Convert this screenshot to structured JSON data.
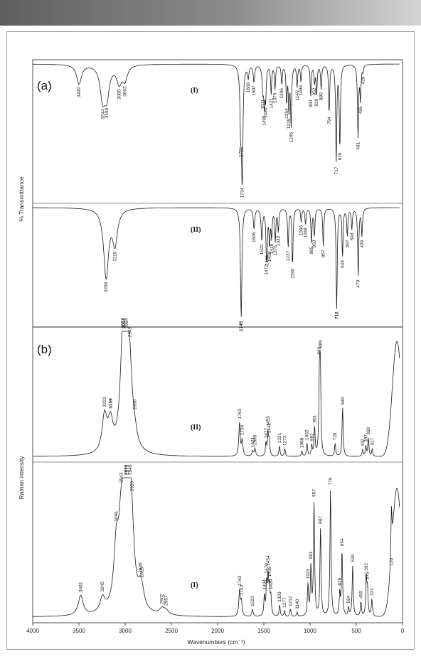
{
  "chart_data": [
    {
      "type": "line",
      "panel": "(a)",
      "ylabel": "% Transmittance",
      "xlabel": "Wavenumbers (cm⁻¹)",
      "xlim": [
        4000,
        0
      ],
      "series": [
        {
          "name": "(I)",
          "peaks": [
            {
              "label": "3499",
              "x": 3499,
              "depth": 0.16
            },
            {
              "label": "3244",
              "x": 3244,
              "depth": 0.26
            },
            {
              "label": "3199",
              "x": 3199,
              "depth": 0.24
            },
            {
              "label": "3065",
              "x": 3065,
              "depth": 0.14
            },
            {
              "label": "3003",
              "x": 3003,
              "depth": 0.12
            },
            {
              "label": "1751",
              "x": 1751,
              "depth": 0.45
            },
            {
              "label": "1734",
              "x": 1734,
              "depth": 0.95
            },
            {
              "label": "1669",
              "x": 1669,
              "depth": 0.1
            },
            {
              "label": "1607",
              "x": 1607,
              "depth": 0.14
            },
            {
              "label": "1511",
              "x": 1511,
              "depth": 0.2
            },
            {
              "label": "1495",
              "x": 1495,
              "depth": 0.3
            },
            {
              "label": "1480",
              "x": 1480,
              "depth": 0.26
            },
            {
              "label": "1421",
              "x": 1421,
              "depth": 0.24
            },
            {
              "label": "1379",
              "x": 1379,
              "depth": 0.2
            },
            {
              "label": "1306",
              "x": 1306,
              "depth": 0.16
            },
            {
              "label": "1254",
              "x": 1254,
              "depth": 0.3
            },
            {
              "label": "1229",
              "x": 1229,
              "depth": 0.36
            },
            {
              "label": "1205",
              "x": 1205,
              "depth": 0.5
            },
            {
              "label": "1140",
              "x": 1140,
              "depth": 0.18
            },
            {
              "label": "1099",
              "x": 1099,
              "depth": 0.14
            },
            {
              "label": "993",
              "x": 993,
              "depth": 0.26
            },
            {
              "label": "952",
              "x": 952,
              "depth": 0.14
            },
            {
              "label": "929",
              "x": 929,
              "depth": 0.24
            },
            {
              "label": "880",
              "x": 880,
              "depth": 0.2
            },
            {
              "label": "794",
              "x": 794,
              "depth": 0.4
            },
            {
              "label": "717",
              "x": 717,
              "depth": 0.8
            },
            {
              "label": "678",
              "x": 678,
              "depth": 0.68
            },
            {
              "label": "481",
              "x": 481,
              "depth": 0.6
            },
            {
              "label": "455",
              "x": 455,
              "depth": 0.28
            },
            {
              "label": "428",
              "x": 428,
              "depth": 0.05
            }
          ]
        },
        {
          "name": "(II)",
          "peaks": [
            {
              "label": "3206",
              "x": 3206,
              "depth": 0.6
            },
            {
              "label": "3110",
              "x": 3110,
              "depth": 0.3
            },
            {
              "label": "1745",
              "x": 1745,
              "depth": 0.97,
              "bold": true
            },
            {
              "label": "1606",
              "x": 1606,
              "depth": 0.18
            },
            {
              "label": "1522",
              "x": 1522,
              "depth": 0.28
            },
            {
              "label": "1472",
              "x": 1472,
              "depth": 0.36
            },
            {
              "label": "1464",
              "x": 1464,
              "depth": 0.2
            },
            {
              "label": "1438",
              "x": 1438,
              "depth": 0.3
            },
            {
              "label": "1416",
              "x": 1416,
              "depth": 0.24
            },
            {
              "label": "1376",
              "x": 1376,
              "depth": 0.28
            },
            {
              "label": "1343",
              "x": 1343,
              "depth": 0.2
            },
            {
              "label": "1237",
              "x": 1237,
              "depth": 0.34
            },
            {
              "label": "1190",
              "x": 1190,
              "depth": 0.5
            },
            {
              "label": "1096",
              "x": 1096,
              "depth": 0.12
            },
            {
              "label": "1049",
              "x": 1049,
              "depth": 0.14
            },
            {
              "label": "985",
              "x": 985,
              "depth": 0.3
            },
            {
              "label": "953",
              "x": 953,
              "depth": 0.24
            },
            {
              "label": "857",
              "x": 857,
              "depth": 0.34
            },
            {
              "label": "712",
              "x": 712,
              "depth": 0.88,
              "bold": true
            },
            {
              "label": "649",
              "x": 649,
              "depth": 0.42
            },
            {
              "label": "597",
              "x": 597,
              "depth": 0.24
            },
            {
              "label": "548",
              "x": 548,
              "depth": 0.18
            },
            {
              "label": "479",
              "x": 479,
              "depth": 0.6
            },
            {
              "label": "439",
              "x": 439,
              "depth": 0.24
            }
          ]
        }
      ]
    },
    {
      "type": "line",
      "panel": "(b)",
      "ylabel": "Raman intensity",
      "xlabel": "Wavenumbers (cm⁻¹)",
      "xlim": [
        4000,
        0
      ],
      "xticks": [
        4000,
        3500,
        3000,
        2500,
        2000,
        1500,
        1000,
        500,
        0
      ],
      "series": [
        {
          "name": "(II)",
          "peaks": [
            {
              "label": "3223",
              "x": 3223,
              "height": 0.28
            },
            {
              "label": "3159",
              "x": 3159,
              "height": 0.22,
              "bold": true
            },
            {
              "label": "3027",
              "x": 3027,
              "height": 0.4
            },
            {
              "label": "3014",
              "x": 3014,
              "height": 0.52,
              "bold": true
            },
            {
              "label": "2984",
              "x": 2984,
              "height": 0.62
            },
            {
              "label": "2949",
              "x": 2949,
              "height": 0.44
            },
            {
              "label": "2898",
              "x": 2898,
              "height": 0.08
            },
            {
              "label": "1763",
              "x": 1763,
              "height": 0.26
            },
            {
              "label": "1734",
              "x": 1734,
              "height": 0.12
            },
            {
              "label": "1621",
              "x": 1621,
              "height": 0.04
            },
            {
              "label": "1596",
              "x": 1596,
              "height": 0.06
            },
            {
              "label": "1477",
              "x": 1477,
              "height": 0.1
            },
            {
              "label": "1455",
              "x": 1455,
              "height": 0.18
            },
            {
              "label": "1441",
              "x": 1441,
              "height": 0.12
            },
            {
              "label": "1331",
              "x": 1331,
              "height": 0.08
            },
            {
              "label": "1273",
              "x": 1273,
              "height": 0.06
            },
            {
              "label": "1088",
              "x": 1088,
              "height": 0.04
            },
            {
              "label": "1033",
              "x": 1033,
              "height": 0.1
            },
            {
              "label": "982",
              "x": 982,
              "height": 0.08
            },
            {
              "label": "951",
              "x": 951,
              "height": 0.22
            },
            {
              "label": "899",
              "x": 899,
              "height": 0.56
            },
            {
              "label": "889",
              "x": 889,
              "height": 0.64
            },
            {
              "label": "729",
              "x": 729,
              "height": 0.1
            },
            {
              "label": "648",
              "x": 648,
              "height": 0.38
            },
            {
              "label": "432",
              "x": 432,
              "height": 0.05
            },
            {
              "label": "397",
              "x": 397,
              "height": 0.08
            },
            {
              "label": "369",
              "x": 369,
              "height": 0.14
            },
            {
              "label": "327",
              "x": 327,
              "height": 0.06
            }
          ]
        },
        {
          "name": "(I)",
          "peaks": [
            {
              "label": "3481",
              "x": 3481,
              "height": 0.14
            },
            {
              "label": "3245",
              "x": 3245,
              "height": 0.1
            },
            {
              "label": "3096",
              "x": 3096,
              "height": 0.4
            },
            {
              "label": "3043",
              "x": 3043,
              "height": 0.46
            },
            {
              "label": "2993",
              "x": 2993,
              "height": 0.58
            },
            {
              "label": "2979",
              "x": 2979,
              "height": 0.64
            },
            {
              "label": "2946",
              "x": 2946,
              "height": 0.36
            },
            {
              "label": "2926",
              "x": 2926,
              "height": 0.26
            },
            {
              "label": "2836",
              "x": 2836,
              "height": 0.1
            },
            {
              "label": "2818",
              "x": 2818,
              "height": 0.08
            },
            {
              "label": "2602",
              "x": 2602,
              "height": 0.04
            },
            {
              "label": "2557",
              "x": 2557,
              "height": 0.03
            },
            {
              "label": "1763",
              "x": 1763,
              "height": 0.18
            },
            {
              "label": "1743",
              "x": 1743,
              "height": 0.1
            },
            {
              "label": "1623",
              "x": 1623,
              "height": 0.05
            },
            {
              "label": "1494",
              "x": 1494,
              "height": 0.14
            },
            {
              "label": "1470",
              "x": 1470,
              "height": 0.22
            },
            {
              "label": "1454",
              "x": 1454,
              "height": 0.26
            },
            {
              "label": "1439",
              "x": 1439,
              "height": 0.18
            },
            {
              "label": "1424",
              "x": 1424,
              "height": 0.12
            },
            {
              "label": "1329",
              "x": 1329,
              "height": 0.08
            },
            {
              "label": "1277",
              "x": 1277,
              "height": 0.04
            },
            {
              "label": "1212",
              "x": 1212,
              "height": 0.05
            },
            {
              "label": "1140",
              "x": 1140,
              "height": 0.03
            },
            {
              "label": "1023",
              "x": 1023,
              "height": 0.22
            },
            {
              "label": "991",
              "x": 991,
              "height": 0.34
            },
            {
              "label": "957",
              "x": 957,
              "height": 0.8
            },
            {
              "label": "887",
              "x": 887,
              "height": 0.62
            },
            {
              "label": "779",
              "x": 779,
              "height": 0.9
            },
            {
              "label": "679",
              "x": 679,
              "height": 0.16
            },
            {
              "label": "654",
              "x": 654,
              "height": 0.46
            },
            {
              "label": "584",
              "x": 584,
              "height": 0.06
            },
            {
              "label": "539",
              "x": 539,
              "height": 0.36
            },
            {
              "label": "450",
              "x": 450,
              "height": 0.1
            },
            {
              "label": "392",
              "x": 392,
              "height": 0.26
            },
            {
              "label": "379",
              "x": 379,
              "height": 0.18
            },
            {
              "label": "331",
              "x": 331,
              "height": 0.12
            },
            {
              "label": "120",
              "x": 120,
              "height": 0.34
            }
          ]
        }
      ]
    }
  ]
}
